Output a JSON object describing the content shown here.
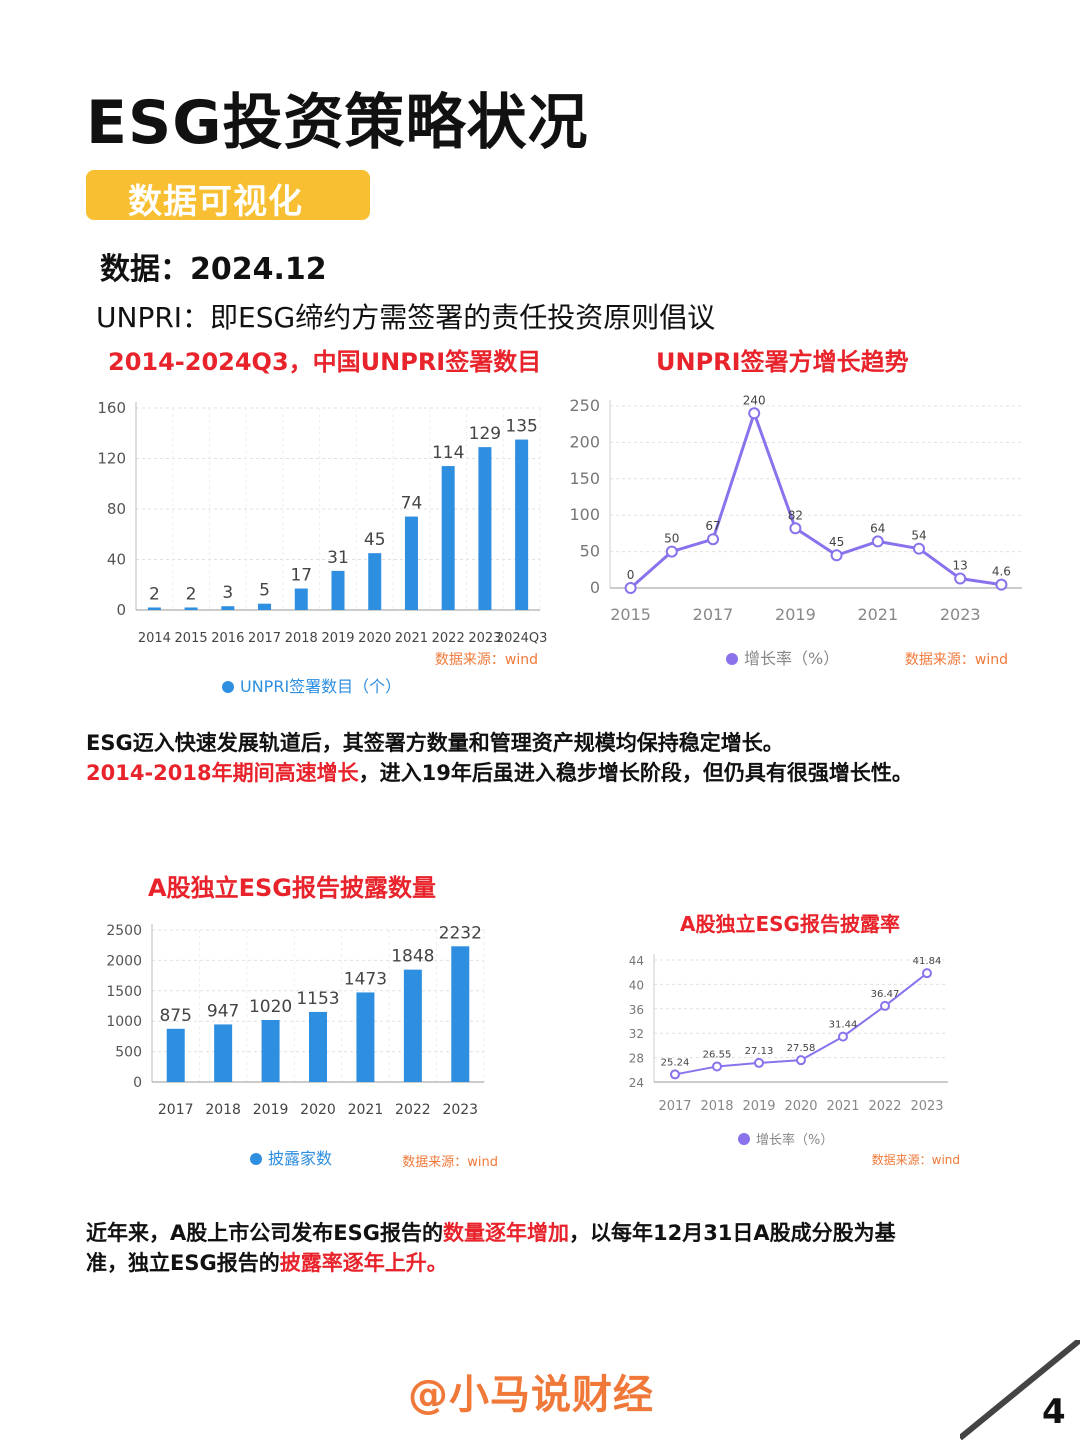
{
  "page": {
    "title": "ESG投资策略状况",
    "badge": "数据可视化",
    "date_line": "数据：2024.12",
    "note": "UNPRI：即ESG缔约方需签署的责任投资原则倡议",
    "para1_line1": "ESG迈入快速发展轨道后，其签署方数量和管理资产规模均保持稳定增长。",
    "para1_line2_hl": "2014-2018年期间高速增长",
    "para1_line2_rest": "，进入19年后虽进入稳步增长阶段，但仍具有很强增长性。",
    "para2_a": "近年来，A股上市公司发布ESG报告的",
    "para2_hl1": "数量逐年增加",
    "para2_b": "，以每年12月31日A股成分股为基",
    "para2_c": "准，独立ESG报告的",
    "para2_hl2": "披露率逐年上升。",
    "footer": "@小马说财经",
    "page_number": "4"
  },
  "colors": {
    "accent": "#f7bf31",
    "red": "#e8232b",
    "bar": "#2e8ee0",
    "line": "#8a72ec",
    "footer": "#f0793a",
    "source": "#f0793a"
  },
  "chart_data": [
    {
      "id": "c1",
      "type": "bar",
      "title": "2014-2024Q3，中国UNPRI签署数目",
      "categories": [
        "2014",
        "2015",
        "2016",
        "2017",
        "2018",
        "2019",
        "2020",
        "2021",
        "2022",
        "2023",
        "2024Q3"
      ],
      "series": [
        {
          "name": "UNPRI签署数目（个）",
          "values": [
            2,
            2,
            3,
            5,
            17,
            31,
            45,
            74,
            114,
            129,
            135
          ]
        }
      ],
      "ylim": [
        0,
        160
      ],
      "yticks": [
        0,
        40,
        80,
        120,
        160
      ],
      "source": "数据来源：wind",
      "legend": "bottom"
    },
    {
      "id": "c2",
      "type": "line",
      "title": "UNPRI签署方增长趋势",
      "x": [
        2015,
        2016,
        2017,
        2018,
        2019,
        2020,
        2021,
        2022,
        2023,
        2024
      ],
      "xtick_labels": [
        "2015",
        "2017",
        "2019",
        "2021",
        "2023"
      ],
      "series": [
        {
          "name": "增长率（%）",
          "values": [
            0,
            50,
            67,
            240,
            82,
            45,
            64,
            54,
            13,
            4.6
          ]
        }
      ],
      "ylim": [
        0,
        250
      ],
      "yticks": [
        0,
        50,
        100,
        150,
        200,
        250
      ],
      "source": "数据来源：wind",
      "legend": "bottom"
    },
    {
      "id": "c3",
      "type": "bar",
      "title": "A股独立ESG报告披露数量",
      "categories": [
        "2017",
        "2018",
        "2019",
        "2020",
        "2021",
        "2022",
        "2023"
      ],
      "series": [
        {
          "name": "披露家数",
          "values": [
            875,
            947,
            1020,
            1153,
            1473,
            1848,
            2232
          ]
        }
      ],
      "ylim": [
        0,
        2500
      ],
      "yticks": [
        0,
        500,
        1000,
        1500,
        2000,
        2500
      ],
      "source": "数据来源：wind",
      "legend": "bottom"
    },
    {
      "id": "c4",
      "type": "line",
      "title": "A股独立ESG报告披露率",
      "x": [
        "2017",
        "2018",
        "2019",
        "2020",
        "2021",
        "2022",
        "2023"
      ],
      "series": [
        {
          "name": "增长率（%）",
          "values": [
            25.24,
            26.55,
            27.13,
            27.58,
            31.44,
            36.47,
            41.84
          ]
        }
      ],
      "ylim": [
        24,
        44
      ],
      "yticks": [
        24,
        28,
        32,
        36,
        40,
        44
      ],
      "source": "数据来源：wind",
      "legend": "bottom"
    }
  ]
}
